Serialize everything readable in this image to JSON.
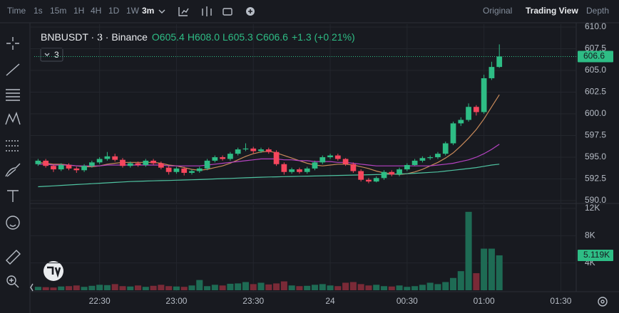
{
  "toolbar": {
    "items": [
      "Time",
      "1s",
      "15m",
      "1H",
      "4H",
      "1D",
      "1W",
      "3m"
    ],
    "views": [
      "Original",
      "Trading View",
      "Depth"
    ]
  },
  "chart_data": {
    "type": "candlestick",
    "title": "BNBUSDT · 3 · Binance",
    "ohlc_labels": [
      "O605.4",
      "H608.0",
      "L605.3",
      "C606.6"
    ],
    "change_label": "+1.3 (+0.21%)",
    "interval": "3",
    "xlim": [
      -0.5,
      70
    ],
    "xticks": [
      {
        "value": 8,
        "label": "22:30"
      },
      {
        "value": 18,
        "label": "23:00"
      },
      {
        "value": 28,
        "label": "23:30"
      },
      {
        "value": 38,
        "label": "24"
      },
      {
        "value": 48,
        "label": "00:30"
      },
      {
        "value": 58,
        "label": "01:00"
      },
      {
        "value": 68,
        "label": "01:30"
      }
    ],
    "ylim": [
      590,
      610
    ],
    "yticks": [
      {
        "value": 590,
        "label": "590.0"
      },
      {
        "value": 592.5,
        "label": "592.5"
      },
      {
        "value": 595,
        "label": "595.0"
      },
      {
        "value": 597.5,
        "label": "597.5"
      },
      {
        "value": 600,
        "label": "600.0"
      },
      {
        "value": 602.5,
        "label": "602.5"
      },
      {
        "value": 605,
        "label": "605.0"
      },
      {
        "value": 607.5,
        "label": "607.5"
      },
      {
        "value": 610,
        "label": "610.0"
      }
    ],
    "grid": true,
    "up_color": "#2ebd85",
    "down_color": "#f6465d",
    "open": [
      594.2,
      594.6,
      594.0,
      593.6,
      594.1,
      593.7,
      593.5,
      594.0,
      594.4,
      594.8,
      595.1,
      594.7,
      594.0,
      594.3,
      594.1,
      594.6,
      594.3,
      593.8,
      593.3,
      593.7,
      593.2,
      593.4,
      593.7,
      594.6,
      595.0,
      594.8,
      595.4,
      595.9,
      596.0,
      595.7,
      595.9,
      595.6,
      594.2,
      593.3,
      593.6,
      593.3,
      593.7,
      594.4,
      595.0,
      595.2,
      594.8,
      594.2,
      593.4,
      592.4,
      592.2,
      592.6,
      593.3,
      593.0,
      593.6,
      594.1,
      594.6,
      594.9,
      595.0,
      595.4,
      596.6,
      598.9,
      599.3,
      600.8,
      600.2,
      604.1,
      605.4
    ],
    "high": [
      594.8,
      594.8,
      594.2,
      594.3,
      594.3,
      593.9,
      594.2,
      594.6,
      595.0,
      595.6,
      595.4,
      594.9,
      594.5,
      594.5,
      594.8,
      594.8,
      594.5,
      594.0,
      593.9,
      593.9,
      593.6,
      593.9,
      594.8,
      595.2,
      595.2,
      595.6,
      596.1,
      596.6,
      596.2,
      596.1,
      596.1,
      595.8,
      594.4,
      593.8,
      593.8,
      593.9,
      594.6,
      595.2,
      595.4,
      595.4,
      594.9,
      594.4,
      593.6,
      592.6,
      592.8,
      593.5,
      593.5,
      593.8,
      594.3,
      594.8,
      595.1,
      595.2,
      595.6,
      596.8,
      599.1,
      599.6,
      601.2,
      601.0,
      604.5,
      606.0,
      608.0
    ],
    "low": [
      594.0,
      593.8,
      593.3,
      593.4,
      593.5,
      593.2,
      593.3,
      593.8,
      594.2,
      594.6,
      594.5,
      593.8,
      593.8,
      593.9,
      593.9,
      594.1,
      593.6,
      593.0,
      593.1,
      592.9,
      593.0,
      593.2,
      593.5,
      594.4,
      594.6,
      594.6,
      595.2,
      595.7,
      595.4,
      595.5,
      595.4,
      594.0,
      593.0,
      593.1,
      593.1,
      593.1,
      593.5,
      594.2,
      594.8,
      594.6,
      594.0,
      593.2,
      592.2,
      592.0,
      592.1,
      592.4,
      592.8,
      592.8,
      593.4,
      594.0,
      594.4,
      594.7,
      594.8,
      595.2,
      596.4,
      598.6,
      599.1,
      599.8,
      600.0,
      603.9,
      605.3
    ],
    "close": [
      594.6,
      594.0,
      593.6,
      594.1,
      593.7,
      593.5,
      594.0,
      594.4,
      594.8,
      595.1,
      594.7,
      594.0,
      594.3,
      594.1,
      594.6,
      594.3,
      593.8,
      593.3,
      593.7,
      593.2,
      593.4,
      593.7,
      594.6,
      595.0,
      594.8,
      595.4,
      595.9,
      596.0,
      595.7,
      595.9,
      595.6,
      594.2,
      593.3,
      593.6,
      593.3,
      593.7,
      594.4,
      595.0,
      595.2,
      594.8,
      594.2,
      593.4,
      592.4,
      592.2,
      592.6,
      593.3,
      593.0,
      593.6,
      594.1,
      594.6,
      594.9,
      595.0,
      595.4,
      596.6,
      598.9,
      599.3,
      600.8,
      600.2,
      604.1,
      605.4,
      606.6
    ],
    "last_price": 606.6,
    "moving_averages": [
      {
        "color": "#c98a5a",
        "values": [
          594.4,
          594.3,
          594.2,
          594.2,
          594.1,
          594.0,
          593.9,
          593.9,
          594.0,
          594.2,
          594.3,
          594.4,
          594.4,
          594.4,
          594.4,
          594.4,
          594.3,
          594.1,
          594.0,
          593.8,
          593.6,
          593.5,
          593.6,
          593.8,
          594.0,
          594.3,
          594.7,
          595.1,
          595.4,
          595.6,
          595.7,
          595.5,
          595.2,
          594.9,
          594.6,
          594.3,
          594.1,
          594.0,
          594.1,
          594.2,
          594.2,
          594.1,
          593.9,
          593.7,
          593.4,
          593.2,
          593.1,
          593.0,
          593.1,
          593.3,
          593.6,
          594.0,
          594.4,
          594.9,
          595.5,
          596.3,
          597.2,
          598.2,
          599.4,
          600.8,
          602.2
        ]
      },
      {
        "color": "#b643c2",
        "values": [
          594.2,
          594.2,
          594.1,
          594.1,
          594.1,
          594.0,
          594.0,
          594.0,
          594.0,
          594.1,
          594.1,
          594.1,
          594.1,
          594.1,
          594.1,
          594.1,
          594.1,
          594.0,
          594.0,
          594.0,
          594.0,
          594.0,
          594.1,
          594.2,
          594.3,
          594.4,
          594.5,
          594.6,
          594.7,
          594.8,
          594.8,
          594.8,
          594.7,
          594.7,
          594.6,
          594.6,
          594.5,
          594.5,
          594.5,
          594.4,
          594.4,
          594.3,
          594.2,
          594.1,
          594.0,
          594.0,
          594.0,
          594.0,
          594.0,
          594.0,
          594.0,
          594.0,
          594.1,
          594.2,
          594.3,
          594.5,
          594.7,
          595.0,
          595.4,
          595.9,
          596.5
        ]
      },
      {
        "color": "#4fc3a1",
        "values": [
          591.6,
          591.65,
          591.7,
          591.75,
          591.8,
          591.85,
          591.9,
          591.95,
          592.0,
          592.05,
          592.1,
          592.15,
          592.2,
          592.22,
          592.25,
          592.28,
          592.3,
          592.32,
          592.35,
          592.38,
          592.4,
          592.43,
          592.46,
          592.5,
          592.53,
          592.56,
          592.6,
          592.63,
          592.66,
          592.7,
          592.72,
          592.74,
          592.76,
          592.78,
          592.8,
          592.82,
          592.84,
          592.86,
          592.88,
          592.9,
          592.92,
          592.94,
          592.96,
          592.98,
          593.0,
          593.02,
          593.05,
          593.08,
          593.1,
          593.15,
          593.2,
          593.25,
          593.3,
          593.4,
          593.5,
          593.6,
          593.7,
          593.8,
          593.95,
          594.1,
          594.2
        ]
      }
    ],
    "volume": {
      "ylim": [
        0,
        12000
      ],
      "yticks": [
        {
          "value": 4000,
          "label": "4K"
        },
        {
          "value": 8000,
          "label": "8K"
        },
        {
          "value": 12000,
          "label": "12K"
        }
      ],
      "up_color": "#1e6b54",
      "down_color": "#7a2a37",
      "values": [
        500,
        450,
        400,
        550,
        600,
        700,
        500,
        650,
        800,
        750,
        900,
        600,
        550,
        700,
        500,
        650,
        800,
        600,
        550,
        500,
        700,
        1500,
        600,
        800,
        700,
        950,
        1000,
        1200,
        900,
        1100,
        850,
        1000,
        1300,
        700,
        600,
        650,
        800,
        900,
        700,
        600,
        1100,
        1200,
        900,
        700,
        800,
        600,
        550,
        700,
        500,
        600,
        800,
        1100,
        900,
        1200,
        1800,
        2800,
        11500,
        2500,
        6100,
        6100,
        5119
      ],
      "last": {
        "value": 5119,
        "label": "5.119K"
      }
    }
  }
}
